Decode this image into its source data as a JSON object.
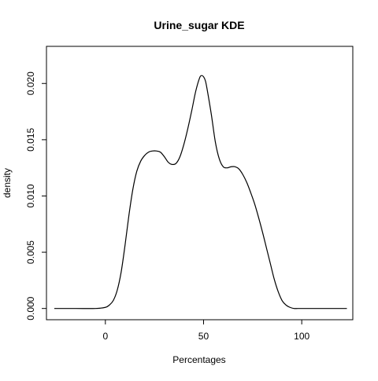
{
  "chart_data": {
    "type": "line",
    "title": "Urine_sugar  KDE",
    "xlabel": "Percentages",
    "ylabel": "density",
    "xlim": [
      -30,
      126
    ],
    "ylim": [
      -0.001,
      0.0233
    ],
    "x_ticks": [
      0,
      50,
      100
    ],
    "x_tick_labels": [
      "0",
      "50",
      "100"
    ],
    "y_ticks": [
      0.0,
      0.005,
      0.01,
      0.015,
      0.02
    ],
    "y_tick_labels": [
      "0.000",
      "0.005",
      "0.010",
      "0.015",
      "0.020"
    ],
    "grid": false,
    "legend": "none",
    "line_color": "#000000",
    "series": [
      {
        "x": [
          -26,
          -15,
          -5,
          0,
          2,
          4,
          6,
          8,
          10,
          12,
          14,
          16,
          18,
          20,
          22,
          24,
          26,
          28,
          30,
          32,
          34,
          36,
          38,
          40,
          42,
          44,
          46,
          48,
          49,
          50,
          51,
          52,
          54,
          56,
          58,
          60,
          62,
          64,
          66,
          68,
          70,
          72,
          74,
          76,
          78,
          80,
          82,
          84,
          86,
          88,
          90,
          92,
          94,
          96,
          98,
          100,
          105,
          115,
          123
        ],
        "y": [
          0.0,
          0.0,
          0.0,
          0.0001,
          0.0003,
          0.0007,
          0.0016,
          0.0032,
          0.0056,
          0.0083,
          0.0106,
          0.0122,
          0.0131,
          0.0136,
          0.0139,
          0.014,
          0.014,
          0.0139,
          0.0135,
          0.013,
          0.0128,
          0.0129,
          0.0135,
          0.0146,
          0.016,
          0.0176,
          0.0193,
          0.0205,
          0.0207,
          0.0206,
          0.0202,
          0.0193,
          0.0172,
          0.0148,
          0.0133,
          0.0126,
          0.0125,
          0.0126,
          0.0126,
          0.0124,
          0.0119,
          0.0112,
          0.0103,
          0.0093,
          0.0081,
          0.0068,
          0.0054,
          0.004,
          0.0026,
          0.0015,
          0.0007,
          0.0003,
          0.0001,
          0.0,
          0.0,
          0.0,
          0.0,
          0.0,
          0.0
        ]
      }
    ]
  }
}
